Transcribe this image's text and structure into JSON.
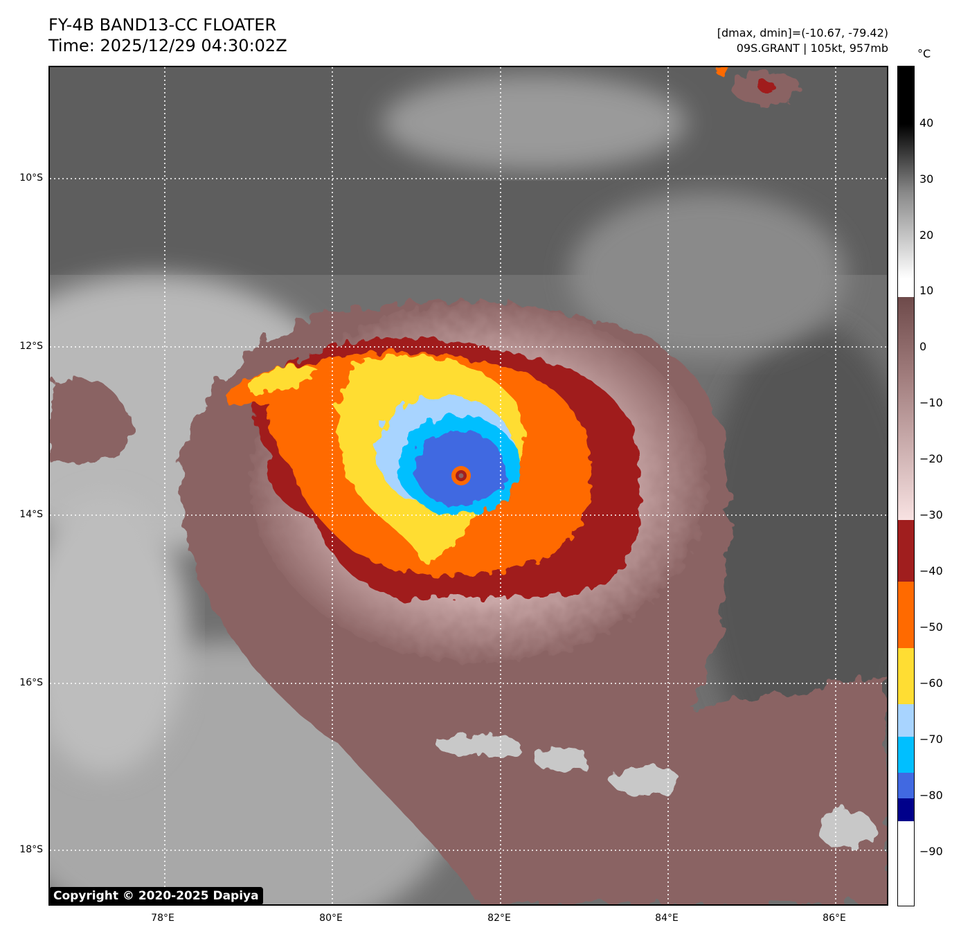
{
  "header": {
    "title_line1": "FY-4B BAND13-CC FLOATER",
    "title_line2": "Time: 2025/12/29 04:30:02Z",
    "range_text": "[dmax, dmin]=(-10.67, -79.42)",
    "storm_text": "09S.GRANT | 105kt, 957mb"
  },
  "map": {
    "latitude_labels": [
      "10°S",
      "12°S",
      "14°S",
      "16°S",
      "18°S"
    ],
    "longitude_labels": [
      "78°E",
      "80°E",
      "82°E",
      "84°E",
      "86°E"
    ],
    "copyright": "Copyright © 2020-2025 Dapiya"
  },
  "colorbar": {
    "unit": "°C",
    "labels": [
      "40",
      "30",
      "20",
      "10",
      "0",
      "−10",
      "−20",
      "−30",
      "−40",
      "−50",
      "−60",
      "−70",
      "−80",
      "−90"
    ],
    "colors": {
      "warm_black": "#000000",
      "gray_mid": "#8a8a8a",
      "white": "#ffffff",
      "pink_light": "#f5dede",
      "maroon_gray": "#8a6464",
      "dark_red": "#a01e1e",
      "orange": "#ff6a00",
      "yellow": "#ffdd33",
      "light_blue": "#a8d4ff",
      "cyan": "#00bfff",
      "royal_blue": "#4169e1",
      "navy": "#00008b"
    }
  }
}
